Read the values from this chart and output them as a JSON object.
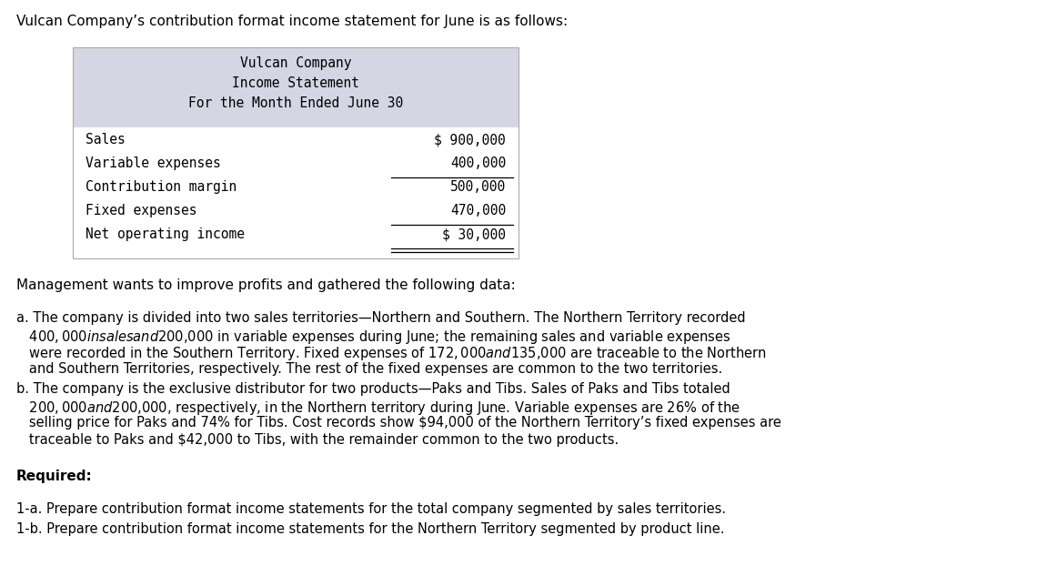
{
  "intro_text": "Vulcan Company’s contribution format income statement for June is as follows:",
  "table_title_lines": [
    "Vulcan Company",
    "Income Statement",
    "For the Month Ended June 30"
  ],
  "table_rows": [
    {
      "label": "Sales",
      "value": "$ 900,000",
      "underline_before": false,
      "underline_after": false,
      "double_underline": false
    },
    {
      "label": "Variable expenses",
      "value": "400,000",
      "underline_before": false,
      "underline_after": true,
      "double_underline": false
    },
    {
      "label": "Contribution margin",
      "value": "500,000",
      "underline_before": false,
      "underline_after": false,
      "double_underline": false
    },
    {
      "label": "Fixed expenses",
      "value": "470,000",
      "underline_before": false,
      "underline_after": true,
      "double_underline": false
    },
    {
      "label": "Net operating income",
      "value": "$ 30,000",
      "underline_before": false,
      "underline_after": true,
      "double_underline": true
    }
  ],
  "management_text": "Management wants to improve profits and gathered the following data:",
  "point_a_lines": [
    "a. The company is divided into two sales territories—Northern and Southern. The Northern Territory recorded",
    "   $400,000 in sales and $200,000 in variable expenses during June; the remaining sales and variable expenses",
    "   were recorded in the Southern Territory. Fixed expenses of $172,000 and $135,000 are traceable to the Northern",
    "   and Southern Territories, respectively. The rest of the fixed expenses are common to the two territories."
  ],
  "point_b_lines": [
    "b. The company is the exclusive distributor for two products—Paks and Tibs. Sales of Paks and Tibs totaled",
    "   $200,000 and $200,000, respectively, in the Northern territory during June. Variable expenses are 26% of the",
    "   selling price for Paks and 74% for Tibs. Cost records show $94,000 of the Northern Territory’s fixed expenses are",
    "   traceable to Paks and $42,000 to Tibs, with the remainder common to the two products."
  ],
  "required_label": "Required:",
  "req_1a": "1-a. Prepare contribution format income statements for the total company segmented by sales territories.",
  "req_1b": "1-b. Prepare contribution format income statements for the Northern Territory segmented by product line.",
  "table_bg_color": "#d4d7e3",
  "mono_font": "monospace",
  "body_font": "DejaVu Sans",
  "bg_color": "#ffffff"
}
